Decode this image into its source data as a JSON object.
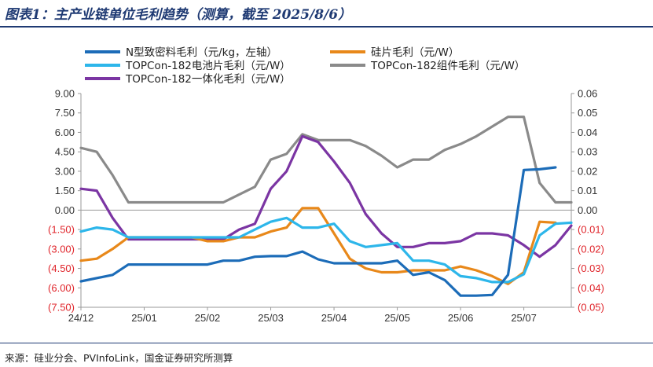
{
  "header": {
    "title": "图表1：主产业链单位毛利趋势（测算，截至 2025/8/6）"
  },
  "footer": {
    "source": "来源：硅业分会、PVInfoLink，国金证券研究所测算"
  },
  "colors": {
    "n_material": "#1c6cb8",
    "wafer": "#e8881a",
    "cell": "#2db6ea",
    "module": "#8a8a8a",
    "integrated": "#7b35a3",
    "negative_tick": "#e0252b",
    "title": "#1f3a73"
  },
  "chart_data": {
    "type": "line",
    "title": "主产业链单位毛利趋势（测算，截至 2025/8/6）",
    "x_ticks": [
      "24/12",
      "25/01",
      "25/02",
      "25/03",
      "25/04",
      "25/05",
      "25/06",
      "25/07"
    ],
    "left_axis": {
      "ylim": [
        -7.5,
        9.0
      ],
      "ticks": [
        "9.00",
        "7.50",
        "6.00",
        "4.50",
        "3.00",
        "1.50",
        "0.00",
        "(1.50)",
        "(3.00)",
        "(4.50)",
        "(6.00)",
        "(7.50)"
      ],
      "tick_values": [
        9,
        7.5,
        6,
        4.5,
        3,
        1.5,
        0,
        -1.5,
        -3,
        -4.5,
        -6,
        -7.5
      ]
    },
    "right_axis": {
      "ylim": [
        -0.05,
        0.06
      ],
      "ticks": [
        "0.06",
        "0.05",
        "0.04",
        "0.03",
        "0.02",
        "0.01",
        "0.00",
        "(0.01)",
        "(0.02)",
        "(0.03)",
        "(0.04)",
        "(0.05)"
      ],
      "tick_values": [
        0.06,
        0.05,
        0.04,
        0.03,
        0.02,
        0.01,
        0,
        -0.01,
        -0.02,
        -0.03,
        -0.04,
        -0.05
      ]
    },
    "x_range": [
      0,
      7.75
    ],
    "series": [
      {
        "name": "N型致密料毛利（元/kg，左轴）",
        "axis": "left",
        "color_key": "n_material",
        "points": [
          [
            0,
            -5.5
          ],
          [
            0.5,
            -5.0
          ],
          [
            0.75,
            -4.2
          ],
          [
            1.0,
            -4.2
          ],
          [
            1.5,
            -4.2
          ],
          [
            1.75,
            -4.2
          ],
          [
            2.0,
            -4.2
          ],
          [
            2.25,
            -3.9
          ],
          [
            2.5,
            -3.9
          ],
          [
            2.75,
            -3.6
          ],
          [
            3.0,
            -3.55
          ],
          [
            3.25,
            -3.55
          ],
          [
            3.5,
            -3.2
          ],
          [
            3.75,
            -3.8
          ],
          [
            4.0,
            -4.1
          ],
          [
            4.25,
            -4.1
          ],
          [
            4.75,
            -4.1
          ],
          [
            5.0,
            -3.9
          ],
          [
            5.25,
            -5.0
          ],
          [
            5.5,
            -4.8
          ],
          [
            5.75,
            -5.4
          ],
          [
            6.0,
            -6.6
          ],
          [
            6.25,
            -6.6
          ],
          [
            6.5,
            -6.55
          ],
          [
            6.75,
            -5.0
          ],
          [
            7.0,
            3.1
          ],
          [
            7.25,
            3.15
          ],
          [
            7.5,
            3.3
          ]
        ]
      },
      {
        "name": "硅片毛利（元/W）",
        "axis": "right",
        "color_key": "wafer",
        "points": [
          [
            0,
            -0.026
          ],
          [
            0.25,
            -0.025
          ],
          [
            0.5,
            -0.02
          ],
          [
            0.75,
            -0.014
          ],
          [
            1.0,
            -0.014
          ],
          [
            1.5,
            -0.014
          ],
          [
            1.75,
            -0.014
          ],
          [
            2.0,
            -0.016
          ],
          [
            2.25,
            -0.016
          ],
          [
            2.5,
            -0.014
          ],
          [
            2.75,
            -0.014
          ],
          [
            3.0,
            -0.011
          ],
          [
            3.25,
            -0.009
          ],
          [
            3.5,
            0.001
          ],
          [
            3.75,
            0.001
          ],
          [
            4.0,
            -0.012
          ],
          [
            4.25,
            -0.025
          ],
          [
            4.5,
            -0.03
          ],
          [
            4.75,
            -0.032
          ],
          [
            5.0,
            -0.032
          ],
          [
            5.25,
            -0.031
          ],
          [
            5.5,
            -0.031
          ],
          [
            5.75,
            -0.031
          ],
          [
            6.0,
            -0.029
          ],
          [
            6.25,
            -0.031
          ],
          [
            6.5,
            -0.034
          ],
          [
            6.75,
            -0.038
          ],
          [
            7.0,
            -0.032
          ],
          [
            7.25,
            -0.006
          ],
          [
            7.5,
            -0.0065
          ]
        ]
      },
      {
        "name": "TOPCon-182电池片毛利（元/W）",
        "axis": "right",
        "color_key": "cell",
        "points": [
          [
            0,
            -0.011
          ],
          [
            0.25,
            -0.009
          ],
          [
            0.5,
            -0.01
          ],
          [
            0.75,
            -0.014
          ],
          [
            1.0,
            -0.014
          ],
          [
            1.5,
            -0.014
          ],
          [
            2.0,
            -0.014
          ],
          [
            2.25,
            -0.014
          ],
          [
            2.5,
            -0.014
          ],
          [
            2.75,
            -0.01
          ],
          [
            3.0,
            -0.006
          ],
          [
            3.25,
            -0.004
          ],
          [
            3.5,
            -0.009
          ],
          [
            3.75,
            -0.009
          ],
          [
            4.0,
            -0.007
          ],
          [
            4.25,
            -0.016
          ],
          [
            4.5,
            -0.019
          ],
          [
            4.75,
            -0.018
          ],
          [
            5.0,
            -0.017
          ],
          [
            5.25,
            -0.026
          ],
          [
            5.5,
            -0.026
          ],
          [
            5.75,
            -0.028
          ],
          [
            6.0,
            -0.034
          ],
          [
            6.25,
            -0.035
          ],
          [
            6.5,
            -0.037
          ],
          [
            6.75,
            -0.037
          ],
          [
            7.0,
            -0.033
          ],
          [
            7.25,
            -0.013
          ],
          [
            7.5,
            -0.007
          ],
          [
            7.75,
            -0.0065
          ]
        ]
      },
      {
        "name": "TOPCon-182组件毛利（元/W）",
        "axis": "right",
        "color_key": "module",
        "points": [
          [
            0,
            0.032
          ],
          [
            0.25,
            0.03
          ],
          [
            0.5,
            0.018
          ],
          [
            0.75,
            0.004
          ],
          [
            1.0,
            0.004
          ],
          [
            1.5,
            0.004
          ],
          [
            2.0,
            0.004
          ],
          [
            2.25,
            0.004
          ],
          [
            2.5,
            0.008
          ],
          [
            2.75,
            0.012
          ],
          [
            3.0,
            0.026
          ],
          [
            3.25,
            0.029
          ],
          [
            3.5,
            0.039
          ],
          [
            3.75,
            0.036
          ],
          [
            4.0,
            0.036
          ],
          [
            4.25,
            0.036
          ],
          [
            4.5,
            0.033
          ],
          [
            4.75,
            0.028
          ],
          [
            5.0,
            0.022
          ],
          [
            5.25,
            0.026
          ],
          [
            5.5,
            0.026
          ],
          [
            5.75,
            0.031
          ],
          [
            6.0,
            0.034
          ],
          [
            6.25,
            0.038
          ],
          [
            6.5,
            0.043
          ],
          [
            6.75,
            0.048
          ],
          [
            7.0,
            0.048
          ],
          [
            7.25,
            0.014
          ],
          [
            7.5,
            0.004
          ],
          [
            7.75,
            0.004
          ]
        ]
      },
      {
        "name": "TOPCon-182一体化毛利（元/W）",
        "axis": "right",
        "color_key": "integrated",
        "points": [
          [
            0,
            0.011
          ],
          [
            0.25,
            0.01
          ],
          [
            0.5,
            -0.004
          ],
          [
            0.75,
            -0.015
          ],
          [
            1.0,
            -0.015
          ],
          [
            1.5,
            -0.015
          ],
          [
            2.0,
            -0.015
          ],
          [
            2.25,
            -0.015
          ],
          [
            2.5,
            -0.01
          ],
          [
            2.75,
            -0.007
          ],
          [
            3.0,
            0.011
          ],
          [
            3.25,
            0.02
          ],
          [
            3.5,
            0.038
          ],
          [
            3.75,
            0.035
          ],
          [
            4.0,
            0.025
          ],
          [
            4.25,
            0.014
          ],
          [
            4.5,
            -0.002
          ],
          [
            4.75,
            -0.012
          ],
          [
            5.0,
            -0.019
          ],
          [
            5.25,
            -0.019
          ],
          [
            5.5,
            -0.017
          ],
          [
            5.75,
            -0.017
          ],
          [
            6.0,
            -0.016
          ],
          [
            6.25,
            -0.012
          ],
          [
            6.5,
            -0.012
          ],
          [
            6.75,
            -0.013
          ],
          [
            7.0,
            -0.018
          ],
          [
            7.25,
            -0.024
          ],
          [
            7.5,
            -0.018
          ],
          [
            7.75,
            -0.008
          ]
        ]
      }
    ],
    "legend": [
      {
        "label": "N型致密料毛利（元/kg，左轴）",
        "color_key": "n_material"
      },
      {
        "label": "硅片毛利（元/W）",
        "color_key": "wafer"
      },
      {
        "label": "TOPCon-182电池片毛利（元/W）",
        "color_key": "cell"
      },
      {
        "label": "TOPCon-182组件毛利（元/W）",
        "color_key": "module"
      },
      {
        "label": "TOPCon-182一体化毛利（元/W）",
        "color_key": "integrated"
      }
    ],
    "legend_position": "top"
  }
}
